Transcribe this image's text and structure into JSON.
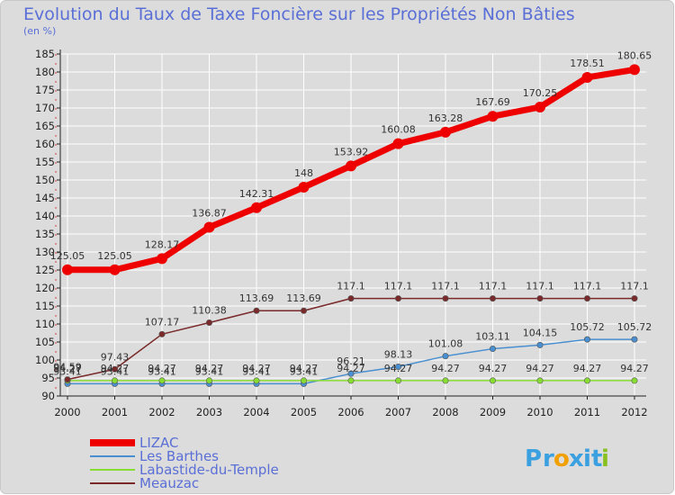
{
  "chart_data": {
    "type": "line",
    "title": "Evolution du Taux de Taxe Foncière sur les Propriétés Non Bâties",
    "subtitle": "(en %)",
    "x": [
      "2000",
      "2001",
      "2002",
      "2003",
      "2004",
      "2005",
      "2006",
      "2007",
      "2008",
      "2009",
      "2010",
      "2011",
      "2012"
    ],
    "ylim": [
      90,
      185
    ],
    "yticks": [
      90,
      95,
      100,
      105,
      110,
      115,
      120,
      125,
      130,
      135,
      140,
      145,
      150,
      155,
      160,
      165,
      170,
      175,
      180,
      185
    ],
    "grid": true,
    "legend_position": "bottom-left",
    "series": [
      {
        "name": "LIZAC",
        "color": "#ee0000",
        "values": [
          125.05,
          125.05,
          128.17,
          136.87,
          142.31,
          148,
          153.92,
          160.08,
          163.28,
          167.69,
          170.25,
          178.51,
          180.65
        ],
        "labels": [
          "125.05",
          "125.05",
          "128.17",
          "136.87",
          "142.31",
          "148",
          "153.92",
          "160.08",
          "163.28",
          "167.69",
          "170.25",
          "178.51",
          "180.65"
        ]
      },
      {
        "name": "Les Barthes",
        "color": "#4a8fd0",
        "values": [
          93.41,
          93.41,
          93.41,
          93.41,
          93.41,
          93.41,
          96.21,
          98.13,
          101.08,
          103.11,
          104.15,
          105.72,
          105.72
        ],
        "labels": [
          "93.41",
          "93.41",
          "93.41",
          "93.41",
          "93.41",
          "93.41",
          "96.21",
          "98.13",
          "101.08",
          "103.11",
          "104.15",
          "105.72",
          "105.72"
        ]
      },
      {
        "name": "Labastide-du-Temple",
        "color": "#88dd33",
        "values": [
          94.27,
          94.27,
          94.27,
          94.27,
          94.27,
          94.27,
          94.27,
          94.27,
          94.27,
          94.27,
          94.27,
          94.27,
          94.27
        ],
        "labels": [
          "94.27",
          "94.27",
          "94.27",
          "94.27",
          "94.27",
          "94.27",
          "94.27",
          "94.27",
          "94.27",
          "94.27",
          "94.27",
          "94.27",
          "94.27"
        ]
      },
      {
        "name": "Meauzac",
        "color": "#7a2a2a",
        "values": [
          94.59,
          97.43,
          107.17,
          110.38,
          113.69,
          113.69,
          117.1,
          117.1,
          117.1,
          117.1,
          117.1,
          117.1,
          117.1
        ],
        "labels": [
          "94.59",
          "97.43",
          "107.17",
          "110.38",
          "113.69",
          "113.69",
          "117.1",
          "117.1",
          "117.1",
          "117.1",
          "117.1",
          "117.1",
          "117.1"
        ]
      }
    ]
  },
  "logo": {
    "text": "Proxiti",
    "letters": [
      "P",
      "r",
      "o",
      "x",
      "i",
      "t",
      "i"
    ],
    "colors": [
      "#3aa0e0",
      "#3aa0e0",
      "#f0a000",
      "#3aa0e0",
      "#3aa0e0",
      "#3aa0e0",
      "#88c020"
    ]
  }
}
